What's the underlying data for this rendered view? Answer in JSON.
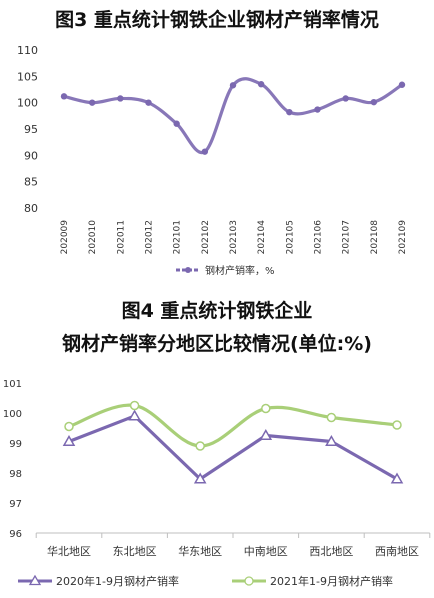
{
  "chart_data": [
    {
      "type": "line",
      "title": "图3  重点统计钢铁企业钢材产销率情况",
      "categories": [
        "202009",
        "202010",
        "202011",
        "202012",
        "202101",
        "202102",
        "202103",
        "202104",
        "202105",
        "202106",
        "202107",
        "202108",
        "202109"
      ],
      "series": [
        {
          "name": "钢材产销率，%",
          "values": [
            101.2,
            100.0,
            100.8,
            100.0,
            96.0,
            90.7,
            103.3,
            103.5,
            98.2,
            98.7,
            100.8,
            100.1,
            103.4
          ],
          "color": "#7B68B0"
        }
      ],
      "yticks": [
        80,
        85,
        90,
        95,
        100,
        105,
        110
      ],
      "ylim": [
        80,
        110
      ],
      "grid": false,
      "legend": "bottom"
    },
    {
      "type": "line",
      "title_line1": "图4  重点统计钢铁企业",
      "title_line2": "钢材产销率分地区比较情况(单位:%)",
      "categories": [
        "华北地区",
        "东北地区",
        "华东地区",
        "中南地区",
        "西北地区",
        "西南地区"
      ],
      "series": [
        {
          "name": "2020年1-9月钢材产销率",
          "values": [
            99.05,
            99.9,
            97.8,
            99.25,
            99.05,
            97.8
          ],
          "color": "#7B68B0",
          "marker": "triangle"
        },
        {
          "name": "2021年1-9月钢材产销率",
          "values": [
            99.55,
            100.25,
            98.9,
            100.15,
            99.85,
            99.6
          ],
          "color": "#A9CF78",
          "marker": "circle"
        }
      ],
      "yticks": [
        96,
        97,
        98,
        99,
        100,
        101
      ],
      "ylim": [
        96,
        101
      ],
      "grid": false,
      "legend": "bottom"
    }
  ]
}
